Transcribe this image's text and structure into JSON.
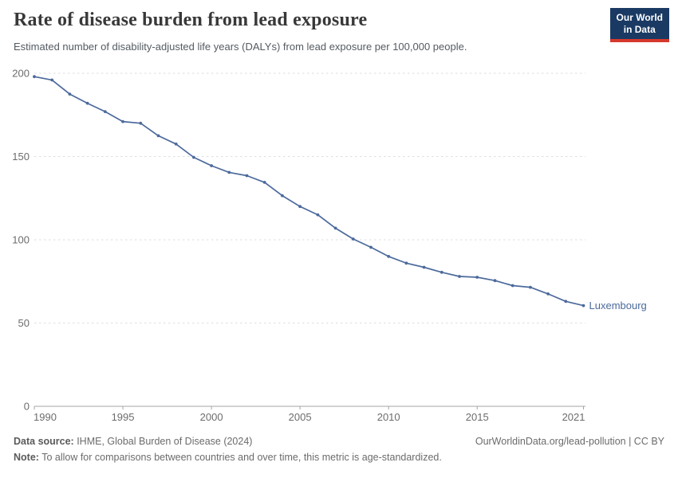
{
  "header": {
    "title": "Rate of disease burden from lead exposure",
    "subtitle": "Estimated number of disability-adjusted life years (DALYs) from lead exposure per 100,000 people."
  },
  "logo": {
    "line1": "Our World",
    "line2": "in Data",
    "bg_color": "#1a3a63",
    "bar_color": "#d7382c"
  },
  "chart_data": {
    "type": "line",
    "title": "Rate of disease burden from lead exposure",
    "xlabel": "",
    "ylabel": "DALYs from lead exposure per 100,000 people",
    "ylim": [
      0,
      200
    ],
    "yticks": [
      0,
      50,
      100,
      150,
      200
    ],
    "xticks": [
      1990,
      1995,
      2000,
      2005,
      2010,
      2015,
      2021
    ],
    "grid": "horizontal-dashed",
    "legend_position": "end-of-line-label",
    "x": [
      1990,
      1991,
      1992,
      1993,
      1994,
      1995,
      1996,
      1997,
      1998,
      1999,
      2000,
      2001,
      2002,
      2003,
      2004,
      2005,
      2006,
      2007,
      2008,
      2009,
      2010,
      2011,
      2012,
      2013,
      2014,
      2015,
      2016,
      2017,
      2018,
      2019,
      2020,
      2021
    ],
    "series": [
      {
        "name": "Luxembourg",
        "color": "#4c6a9c",
        "values": [
          198,
          196,
          187.5,
          182,
          177,
          171,
          170,
          162.5,
          157.5,
          149.5,
          144.5,
          140.5,
          138.5,
          134.5,
          126.5,
          120,
          115,
          107,
          100.5,
          95.5,
          90,
          86,
          83.5,
          80.5,
          78,
          77.5,
          75.5,
          72.5,
          71.5,
          67.5,
          63,
          60.5
        ]
      }
    ],
    "colors": {
      "gridline": "#dedede",
      "axis_line": "#a5a5a5",
      "tick_label": "#6c6c6c"
    }
  },
  "footer": {
    "source_label": "Data source:",
    "source_text": " IHME, Global Burden of Disease (2024)",
    "attribution": "OurWorldinData.org/lead-pollution | CC BY",
    "note_label": "Note:",
    "note_text": " To allow for comparisons between countries and over time, this metric is age-standardized."
  }
}
